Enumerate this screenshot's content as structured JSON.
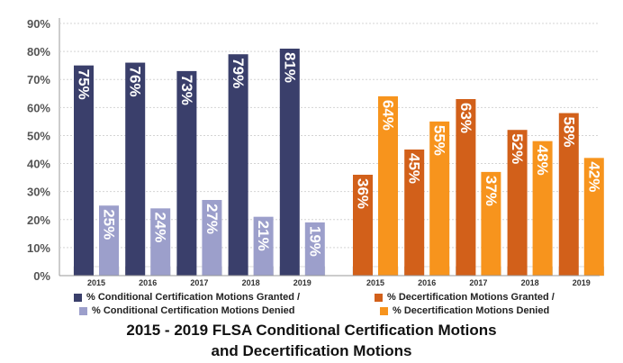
{
  "chart_data": {
    "type": "bar",
    "title": "2015 - 2019 FLSA Conditional Certification Motions",
    "title_line2": "and Decertification Motions",
    "ylim": [
      0,
      90
    ],
    "yticks": [
      "0%",
      "10%",
      "20%",
      "30%",
      "40%",
      "50%",
      "60%",
      "70%",
      "80%",
      "90%"
    ],
    "groups": [
      {
        "name": "conditional",
        "categories": [
          "2015",
          "2016",
          "2017",
          "2018",
          "2019"
        ],
        "series": [
          {
            "name": "% Conditional Certification Motions Granted /",
            "color": "#3a3f6b",
            "values": [
              75,
              76,
              73,
              79,
              81
            ],
            "labels": [
              "75%",
              "76%",
              "73%",
              "79%",
              "81%"
            ]
          },
          {
            "name": "% Conditional Certification Motions Denied",
            "color": "#9c9fcb",
            "values": [
              25,
              24,
              27,
              21,
              19
            ],
            "labels": [
              "25%",
              "24%",
              "27%",
              "21%",
              "19%"
            ]
          }
        ]
      },
      {
        "name": "decertification",
        "categories": [
          "2015",
          "2016",
          "2017",
          "2018",
          "2019"
        ],
        "series": [
          {
            "name": "% Decertification Motions Granted /",
            "color": "#d2601a",
            "values": [
              36,
              45,
              63,
              52,
              58
            ],
            "labels": [
              "36%",
              "45%",
              "63%",
              "52%",
              "58%"
            ]
          },
          {
            "name": "% Decertification Motions Denied",
            "color": "#f7941d",
            "values": [
              64,
              55,
              37,
              48,
              42
            ],
            "labels": [
              "64%",
              "55%",
              "37%",
              "48%",
              "42%"
            ]
          }
        ]
      }
    ]
  }
}
